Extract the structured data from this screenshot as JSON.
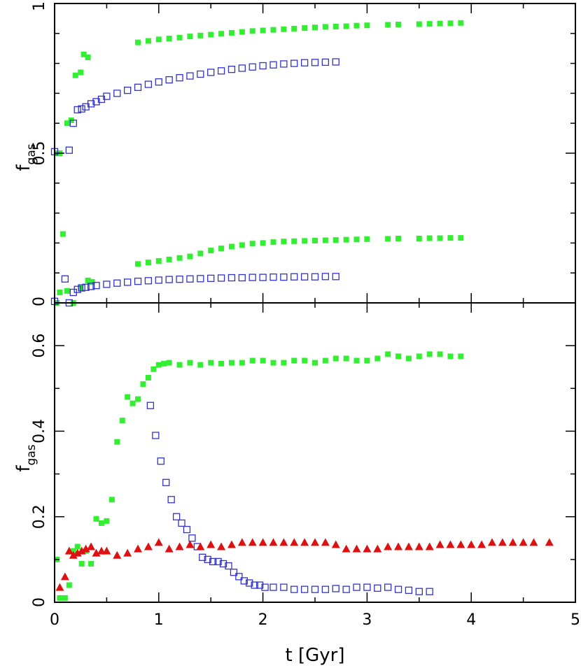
{
  "chart_data": [
    {
      "type": "scatter",
      "panel": "top",
      "title": "",
      "xlabel": "t [Gyr]",
      "ylabel": "f",
      "ylabel_sub": "gas",
      "xlim": [
        0,
        5
      ],
      "ylim": [
        0,
        1
      ],
      "xticks": [
        0,
        1,
        2,
        3,
        4,
        5
      ],
      "yticks": [
        0,
        0.5,
        1
      ],
      "ytick_labels": [
        "0",
        "0.5",
        "1"
      ],
      "grid": false,
      "series": [
        {
          "marker": "filled-square",
          "color": "#33ee33",
          "x": [
            0.02,
            0.05,
            0.08,
            0.12,
            0.16,
            0.2,
            0.25,
            0.28,
            0.32,
            0.36,
            0.8,
            0.9,
            1.0,
            1.1,
            1.2,
            1.3,
            1.4,
            1.5,
            1.6,
            1.7,
            1.8,
            1.9,
            2.0,
            2.1,
            2.2,
            2.3,
            2.4,
            2.5,
            2.6,
            2.7,
            2.8,
            2.9,
            3.0,
            3.2,
            3.3,
            3.5,
            3.6,
            3.7,
            3.8,
            3.9
          ],
          "y": [
            0.5,
            0.5,
            0.23,
            0.6,
            0.61,
            0.76,
            0.77,
            0.83,
            0.82,
            0.07,
            0.87,
            0.875,
            0.88,
            0.883,
            0.886,
            0.89,
            0.893,
            0.896,
            0.899,
            0.902,
            0.905,
            0.908,
            0.91,
            0.912,
            0.914,
            0.916,
            0.918,
            0.92,
            0.922,
            0.923,
            0.924,
            0.926,
            0.927,
            0.929,
            0.93,
            0.931,
            0.932,
            0.933,
            0.934,
            0.935
          ]
        },
        {
          "marker": "filled-square",
          "color": "#33ee33",
          "x": [
            0.02,
            0.05,
            0.12,
            0.18,
            0.25,
            0.32,
            0.8,
            0.9,
            1.0,
            1.1,
            1.2,
            1.3,
            1.4,
            1.5,
            1.6,
            1.7,
            1.8,
            1.9,
            2.0,
            2.1,
            2.2,
            2.3,
            2.4,
            2.5,
            2.6,
            2.7,
            2.8,
            2.9,
            3.0,
            3.2,
            3.3,
            3.5,
            3.6,
            3.7,
            3.8,
            3.9
          ],
          "y": [
            0.0,
            0.035,
            0.04,
            0.0,
            0.05,
            0.075,
            0.13,
            0.135,
            0.14,
            0.145,
            0.15,
            0.155,
            0.165,
            0.175,
            0.182,
            0.188,
            0.193,
            0.198,
            0.2,
            0.203,
            0.205,
            0.206,
            0.207,
            0.208,
            0.209,
            0.21,
            0.211,
            0.212,
            0.213,
            0.214,
            0.215,
            0.215,
            0.216,
            0.216,
            0.217,
            0.217
          ]
        },
        {
          "marker": "open-square",
          "color": "#3333cc",
          "x": [
            0.0,
            0.14,
            0.18,
            0.22,
            0.26,
            0.3,
            0.35,
            0.4,
            0.45,
            0.5,
            0.6,
            0.7,
            0.8,
            0.9,
            1.0,
            1.1,
            1.2,
            1.3,
            1.4,
            1.5,
            1.6,
            1.7,
            1.8,
            1.9,
            2.0,
            2.1,
            2.2,
            2.3,
            2.4,
            2.5,
            2.6,
            2.7
          ],
          "y": [
            0.505,
            0.51,
            0.6,
            0.645,
            0.648,
            0.655,
            0.665,
            0.672,
            0.68,
            0.69,
            0.7,
            0.71,
            0.72,
            0.73,
            0.738,
            0.745,
            0.752,
            0.758,
            0.764,
            0.77,
            0.775,
            0.78,
            0.784,
            0.788,
            0.792,
            0.795,
            0.798,
            0.8,
            0.802,
            0.803,
            0.804,
            0.805
          ]
        },
        {
          "marker": "open-square",
          "color": "#3333cc",
          "x": [
            0.0,
            0.1,
            0.14,
            0.18,
            0.22,
            0.26,
            0.3,
            0.35,
            0.4,
            0.5,
            0.6,
            0.7,
            0.8,
            0.9,
            1.0,
            1.1,
            1.2,
            1.3,
            1.4,
            1.5,
            1.6,
            1.7,
            1.8,
            1.9,
            2.0,
            2.1,
            2.2,
            2.3,
            2.4,
            2.5,
            2.6,
            2.7
          ],
          "y": [
            0.005,
            0.08,
            0.0,
            0.035,
            0.045,
            0.05,
            0.052,
            0.055,
            0.058,
            0.062,
            0.066,
            0.069,
            0.072,
            0.074,
            0.076,
            0.078,
            0.079,
            0.08,
            0.081,
            0.082,
            0.083,
            0.084,
            0.084,
            0.085,
            0.085,
            0.086,
            0.086,
            0.087,
            0.087,
            0.087,
            0.088,
            0.088
          ]
        }
      ]
    },
    {
      "type": "scatter",
      "panel": "bottom",
      "title": "",
      "xlabel": "t [Gyr]",
      "ylabel": "f",
      "ylabel_sub": "gas",
      "xlim": [
        0,
        5
      ],
      "ylim": [
        0,
        0.7
      ],
      "xticks": [
        0,
        1,
        2,
        3,
        4,
        5
      ],
      "yticks": [
        0,
        0.2,
        0.4,
        0.6
      ],
      "ytick_labels": [
        "0",
        "0.2",
        "0.4",
        "0.6"
      ],
      "grid": false,
      "series": [
        {
          "marker": "filled-square",
          "color": "#33ee33",
          "x": [
            0.02,
            0.05,
            0.1,
            0.14,
            0.18,
            0.22,
            0.26,
            0.3,
            0.35,
            0.4,
            0.45,
            0.5,
            0.55,
            0.6,
            0.65,
            0.7,
            0.75,
            0.8,
            0.85,
            0.9,
            0.95,
            1.0,
            1.05,
            1.1,
            1.2,
            1.3,
            1.4,
            1.5,
            1.6,
            1.7,
            1.8,
            1.9,
            2.0,
            2.1,
            2.2,
            2.3,
            2.4,
            2.5,
            2.6,
            2.7,
            2.8,
            2.9,
            3.0,
            3.1,
            3.2,
            3.3,
            3.4,
            3.5,
            3.6,
            3.7,
            3.8,
            3.9
          ],
          "y": [
            0.1,
            0.01,
            0.01,
            0.04,
            0.12,
            0.13,
            0.09,
            0.12,
            0.09,
            0.195,
            0.185,
            0.19,
            0.24,
            0.375,
            0.425,
            0.48,
            0.465,
            0.475,
            0.51,
            0.525,
            0.545,
            0.555,
            0.558,
            0.56,
            0.555,
            0.56,
            0.555,
            0.56,
            0.558,
            0.56,
            0.56,
            0.565,
            0.565,
            0.56,
            0.56,
            0.565,
            0.565,
            0.56,
            0.565,
            0.57,
            0.57,
            0.565,
            0.565,
            0.57,
            0.58,
            0.575,
            0.57,
            0.575,
            0.58,
            0.58,
            0.575,
            0.575
          ]
        },
        {
          "marker": "open-square",
          "color": "#3333cc",
          "x": [
            0.92,
            0.97,
            1.02,
            1.07,
            1.12,
            1.17,
            1.22,
            1.27,
            1.32,
            1.37,
            1.42,
            1.47,
            1.52,
            1.57,
            1.62,
            1.67,
            1.72,
            1.77,
            1.82,
            1.87,
            1.92,
            1.97,
            2.02,
            2.1,
            2.2,
            2.3,
            2.4,
            2.5,
            2.6,
            2.7,
            2.8,
            2.9,
            3.0,
            3.1,
            3.2,
            3.3,
            3.4,
            3.5,
            3.6
          ],
          "y": [
            0.46,
            0.39,
            0.33,
            0.28,
            0.24,
            0.2,
            0.185,
            0.17,
            0.15,
            0.13,
            0.105,
            0.1,
            0.095,
            0.095,
            0.09,
            0.085,
            0.07,
            0.06,
            0.05,
            0.045,
            0.04,
            0.04,
            0.035,
            0.035,
            0.035,
            0.03,
            0.03,
            0.03,
            0.03,
            0.032,
            0.03,
            0.035,
            0.035,
            0.033,
            0.035,
            0.03,
            0.028,
            0.025,
            0.025
          ]
        },
        {
          "marker": "filled-triangle",
          "color": "#dd1111",
          "x": [
            0.05,
            0.1,
            0.14,
            0.18,
            0.22,
            0.26,
            0.3,
            0.35,
            0.4,
            0.45,
            0.5,
            0.6,
            0.7,
            0.8,
            0.9,
            1.0,
            1.1,
            1.2,
            1.3,
            1.4,
            1.5,
            1.6,
            1.7,
            1.8,
            1.9,
            2.0,
            2.1,
            2.2,
            2.3,
            2.4,
            2.5,
            2.6,
            2.7,
            2.8,
            2.9,
            3.0,
            3.1,
            3.2,
            3.3,
            3.4,
            3.5,
            3.6,
            3.7,
            3.8,
            3.9,
            4.0,
            4.1,
            4.2,
            4.3,
            4.4,
            4.5,
            4.6,
            4.75
          ],
          "y": [
            0.035,
            0.06,
            0.12,
            0.11,
            0.115,
            0.12,
            0.125,
            0.13,
            0.115,
            0.12,
            0.12,
            0.11,
            0.115,
            0.125,
            0.13,
            0.14,
            0.125,
            0.13,
            0.135,
            0.13,
            0.135,
            0.13,
            0.135,
            0.14,
            0.14,
            0.14,
            0.14,
            0.14,
            0.14,
            0.14,
            0.14,
            0.14,
            0.135,
            0.125,
            0.125,
            0.125,
            0.125,
            0.13,
            0.13,
            0.13,
            0.13,
            0.13,
            0.135,
            0.135,
            0.135,
            0.135,
            0.135,
            0.14,
            0.14,
            0.14,
            0.14,
            0.14,
            0.14
          ]
        }
      ]
    }
  ]
}
